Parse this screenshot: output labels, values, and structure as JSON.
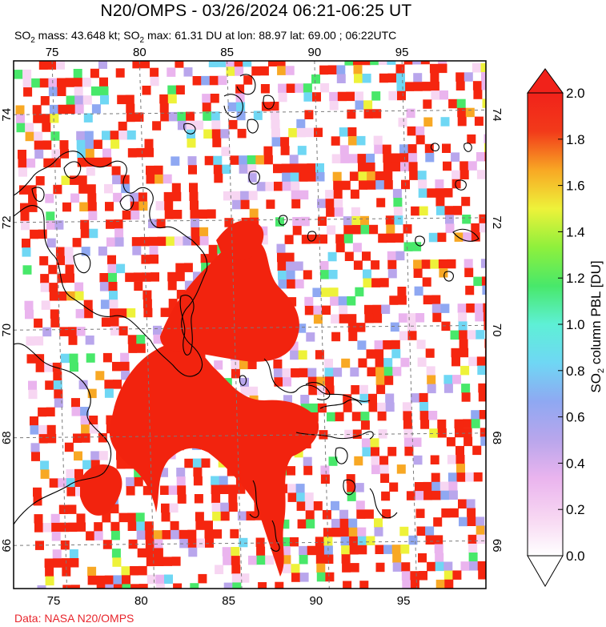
{
  "title": "N20/OMPS - 03/26/2024 06:21-06:25 UT",
  "subtitle": {
    "prefix": "SO",
    "sub1": "2",
    "middle": " mass: 43.648 kt; SO",
    "sub2": "2",
    "suffix": " max: 61.31 DU at lon: 88.97 lat: 69.00 ; 06:22UTC"
  },
  "credit": "Data: NASA N20/OMPS",
  "colorbar": {
    "label_prefix": "SO",
    "label_sub": "2",
    "label_suffix": " column PBL [DU]",
    "ticks": [
      "0.0",
      "0.2",
      "0.4",
      "0.6",
      "0.8",
      "1.0",
      "1.2",
      "1.4",
      "1.6",
      "1.8",
      "2.0"
    ],
    "range": [
      0.0,
      2.0
    ],
    "colors": [
      "#ffffff",
      "#f7d6f2",
      "#eab4ee",
      "#b9a6ec",
      "#8fa8f2",
      "#6fd7f4",
      "#5ef0d6",
      "#48e86a",
      "#8ff03c",
      "#eef23a",
      "#f8a824",
      "#f23a1a",
      "#f1221a"
    ]
  },
  "map": {
    "lon_ticks": [
      "75",
      "80",
      "85",
      "90",
      "95"
    ],
    "lat_ticks": [
      "66",
      "68",
      "70",
      "72",
      "74"
    ],
    "lon_range": [
      72.8,
      99.8
    ],
    "lat_range": [
      65.2,
      75.0
    ],
    "pixel_color": "#f5260f",
    "plume_color": "#f2230e"
  }
}
